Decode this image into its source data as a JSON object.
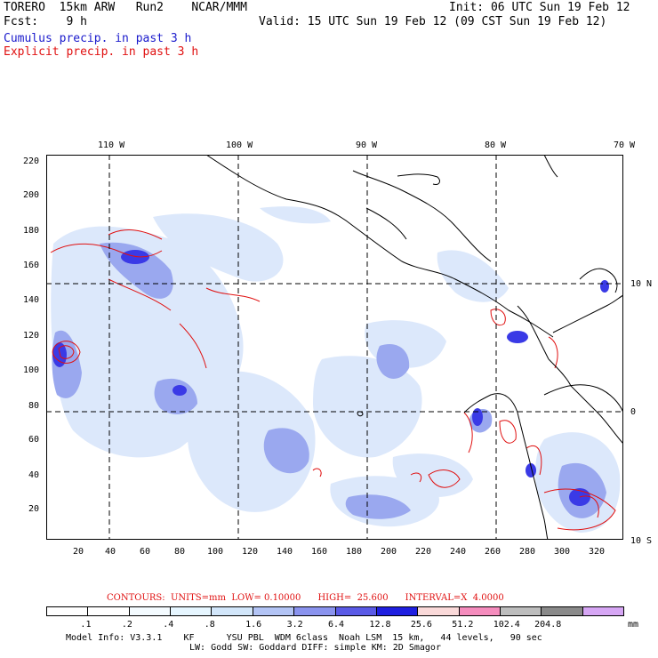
{
  "header": {
    "line1_left": "TORERO  15km ARW   Run2    NCAR/MMM",
    "line1_right": "Init: 06 UTC Sun 19 Feb 12",
    "line2_left": "Fcst:    9 h",
    "line2_right": "Valid: 15 UTC Sun 19 Feb 12 (09 CST Sun 19 Feb 12)",
    "cumulus_label": "Cumulus precip. in past 3 h",
    "explicit_label": "Explicit precip. in past 3 h"
  },
  "axes": {
    "top_labels": [
      "110 W",
      "100 W",
      "90 W",
      "80 W",
      "70 W"
    ],
    "right_labels": [
      "10 N",
      "0",
      "10 S"
    ],
    "left_labels": [
      "220",
      "200",
      "180",
      "160",
      "140",
      "120",
      "100",
      "80",
      "60",
      "40",
      "20"
    ],
    "bottom_labels": [
      "20",
      "40",
      "60",
      "80",
      "100",
      "120",
      "140",
      "160",
      "180",
      "200",
      "220",
      "240",
      "260",
      "280",
      "300",
      "320"
    ]
  },
  "contour_info": "CONTOURS:  UNITS=mm  LOW= 0.10000      HIGH=  25.600      INTERVAL=X  4.0000",
  "scale": {
    "labels": [
      ".1",
      ".2",
      ".4",
      ".8",
      "1.6",
      "3.2",
      "6.4",
      "12.8",
      "25.6",
      "51.2",
      "102.4",
      "204.8"
    ],
    "unit": "mm",
    "colors": [
      "#ffffff",
      "#ffffff",
      "#f4fbff",
      "#e6f6ff",
      "#d2e6fa",
      "#b3c4f5",
      "#8a93ee",
      "#5a5ae6",
      "#1f1fe0",
      "#fad9d9",
      "#f58cbd",
      "#bdbdbd",
      "#8a8a8a",
      "#d6a6f4"
    ]
  },
  "footer": {
    "line1": "Model Info: V3.3.1    KF      YSU PBL  WDM 6class  Noah LSM  15 km,   44 levels,   90 sec",
    "line2": "LW: Godd SW: Goddard DIFF: simple KM: 2D Smagor"
  },
  "colors": {
    "cumulus": "#1a1acc",
    "explicit": "#e01010",
    "light_precip": "#dce8fb",
    "mid_precip": "#9aa8ef",
    "heavy_precip": "#3a3ae6"
  }
}
